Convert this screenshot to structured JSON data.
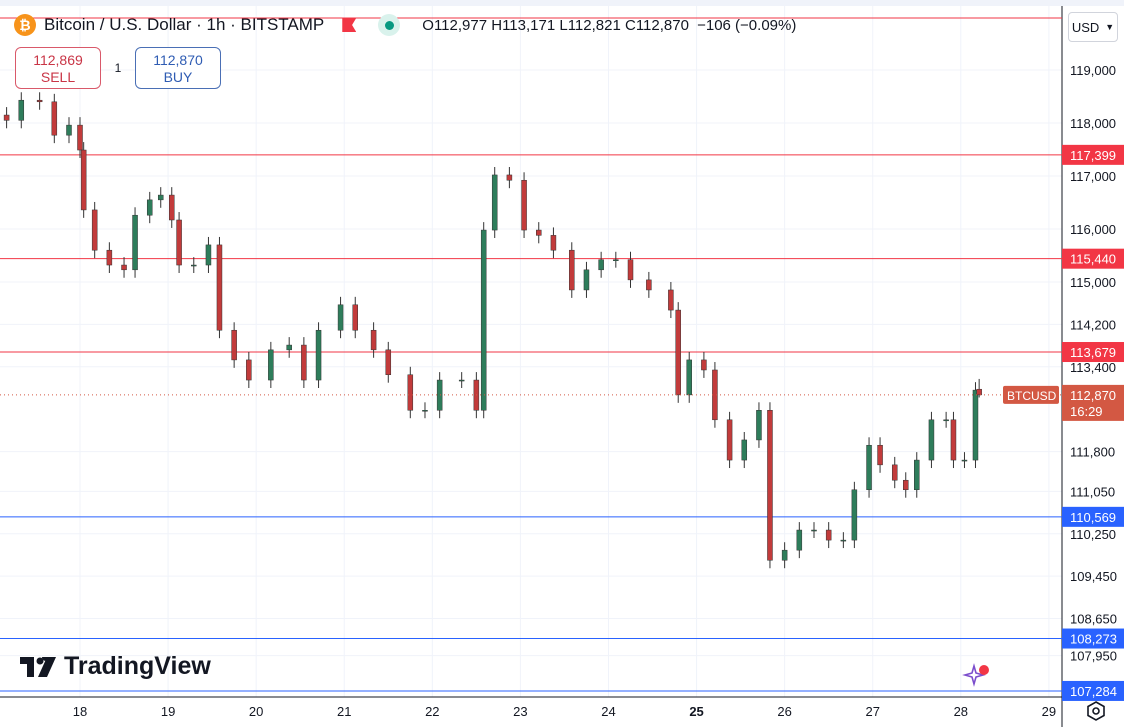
{
  "header": {
    "symbol_title": "Bitcoin / U.S. Dollar · 1h · BITSTAMP",
    "o_label": "O",
    "o": "112,977",
    "h_label": "H",
    "h": "113,171",
    "l_label": "L",
    "l": "112,821",
    "c_label": "C",
    "c": "112,870",
    "change": "−106 (−0.09%)"
  },
  "trade": {
    "sell_price": "112,869",
    "sell_label": "SELL",
    "qty": "1",
    "buy_price": "112,870",
    "buy_label": "BUY"
  },
  "currency": "USD",
  "logo_text": "TradingView",
  "colors": {
    "up": "#089981",
    "down": "#f23645",
    "candle_up": "#2e7d5b",
    "candle_down": "#c23b3b",
    "resistance": "#f23645",
    "support": "#2962ff",
    "grid": "#f0f3fa",
    "price_label": "#d35843"
  },
  "icons": {
    "coin": "bitcoin-icon",
    "flag": "flag-icon",
    "status": "market-open-dot-icon",
    "settings": "gear-icon",
    "chevron": "chevron-down-icon",
    "promo": "sparkle-icon"
  },
  "chart_data": {
    "type": "candlestick",
    "timeframe": "1h",
    "ylim": [
      107200,
      120000
    ],
    "y_ticks": [
      "119,000",
      "118,000",
      "117,000",
      "116,000",
      "115,000",
      "114,200",
      "113,400",
      "111,800",
      "111,050",
      "110,250",
      "109,450",
      "108,650",
      "107,950"
    ],
    "x_ticks": [
      18,
      19,
      20,
      21,
      22,
      23,
      24,
      25,
      26,
      27,
      28,
      29
    ],
    "horizontal_levels": [
      {
        "price": 119980,
        "label": "",
        "kind": "resistance"
      },
      {
        "price": 117399,
        "label": "117,399",
        "kind": "resistance"
      },
      {
        "price": 115440,
        "label": "115,440",
        "kind": "resistance"
      },
      {
        "price": 113679,
        "label": "113,679",
        "kind": "resistance"
      },
      {
        "price": 110569,
        "label": "110,569",
        "kind": "support"
      },
      {
        "price": 108273,
        "label": "108,273",
        "kind": "support"
      },
      {
        "price": 107284,
        "label": "107,284",
        "kind": "support"
      }
    ],
    "last_price": {
      "symbol": "BTCUSD",
      "price": 112870,
      "label": "112,870",
      "countdown": "16:29"
    },
    "closes": [
      [
        17,
        4,
        118050
      ],
      [
        17,
        8,
        118430
      ],
      [
        17,
        13,
        118400
      ],
      [
        17,
        17,
        117770
      ],
      [
        17,
        21,
        117960
      ],
      [
        18,
        0,
        117490
      ],
      [
        18,
        1,
        116360
      ],
      [
        18,
        4,
        115600
      ],
      [
        18,
        8,
        115320
      ],
      [
        18,
        12,
        115230
      ],
      [
        18,
        15,
        116260
      ],
      [
        18,
        19,
        116550
      ],
      [
        18,
        22,
        116640
      ],
      [
        19,
        1,
        116170
      ],
      [
        19,
        3,
        115320
      ],
      [
        19,
        7,
        115320
      ],
      [
        19,
        11,
        115700
      ],
      [
        19,
        14,
        114090
      ],
      [
        19,
        18,
        113530
      ],
      [
        19,
        22,
        113150
      ],
      [
        20,
        4,
        113720
      ],
      [
        20,
        9,
        113810
      ],
      [
        20,
        13,
        113150
      ],
      [
        20,
        17,
        114090
      ],
      [
        20,
        23,
        114570
      ],
      [
        21,
        3,
        114090
      ],
      [
        21,
        8,
        113720
      ],
      [
        21,
        12,
        113250
      ],
      [
        21,
        18,
        112580
      ],
      [
        21,
        22,
        112580
      ],
      [
        22,
        2,
        113150
      ],
      [
        22,
        8,
        113150
      ],
      [
        22,
        12,
        112580
      ],
      [
        22,
        14,
        115980
      ],
      [
        22,
        17,
        117020
      ],
      [
        22,
        21,
        116920
      ],
      [
        23,
        1,
        115980
      ],
      [
        23,
        5,
        115880
      ],
      [
        23,
        9,
        115600
      ],
      [
        23,
        14,
        114850
      ],
      [
        23,
        18,
        115230
      ],
      [
        23,
        22,
        115420
      ],
      [
        24,
        2,
        115420
      ],
      [
        24,
        6,
        115040
      ],
      [
        24,
        11,
        114850
      ],
      [
        24,
        17,
        114470
      ],
      [
        24,
        19,
        112870
      ],
      [
        24,
        22,
        113530
      ],
      [
        25,
        2,
        113340
      ],
      [
        25,
        5,
        112400
      ],
      [
        25,
        9,
        111640
      ],
      [
        25,
        13,
        112020
      ],
      [
        25,
        17,
        112580
      ],
      [
        25,
        20,
        109750
      ],
      [
        26,
        0,
        109940
      ],
      [
        26,
        4,
        110320
      ],
      [
        26,
        8,
        110320
      ],
      [
        26,
        12,
        110130
      ],
      [
        26,
        16,
        110130
      ],
      [
        26,
        19,
        111080
      ],
      [
        26,
        23,
        111920
      ],
      [
        27,
        2,
        111550
      ],
      [
        27,
        6,
        111260
      ],
      [
        27,
        9,
        111080
      ],
      [
        27,
        12,
        111640
      ],
      [
        27,
        16,
        112400
      ],
      [
        27,
        20,
        112400
      ],
      [
        27,
        22,
        111640
      ],
      [
        28,
        1,
        111640
      ],
      [
        28,
        4,
        112960
      ]
    ],
    "last_candle": {
      "day": 28,
      "hour": 5,
      "open": 112977,
      "high": 113171,
      "low": 112821,
      "close": 112870
    }
  }
}
